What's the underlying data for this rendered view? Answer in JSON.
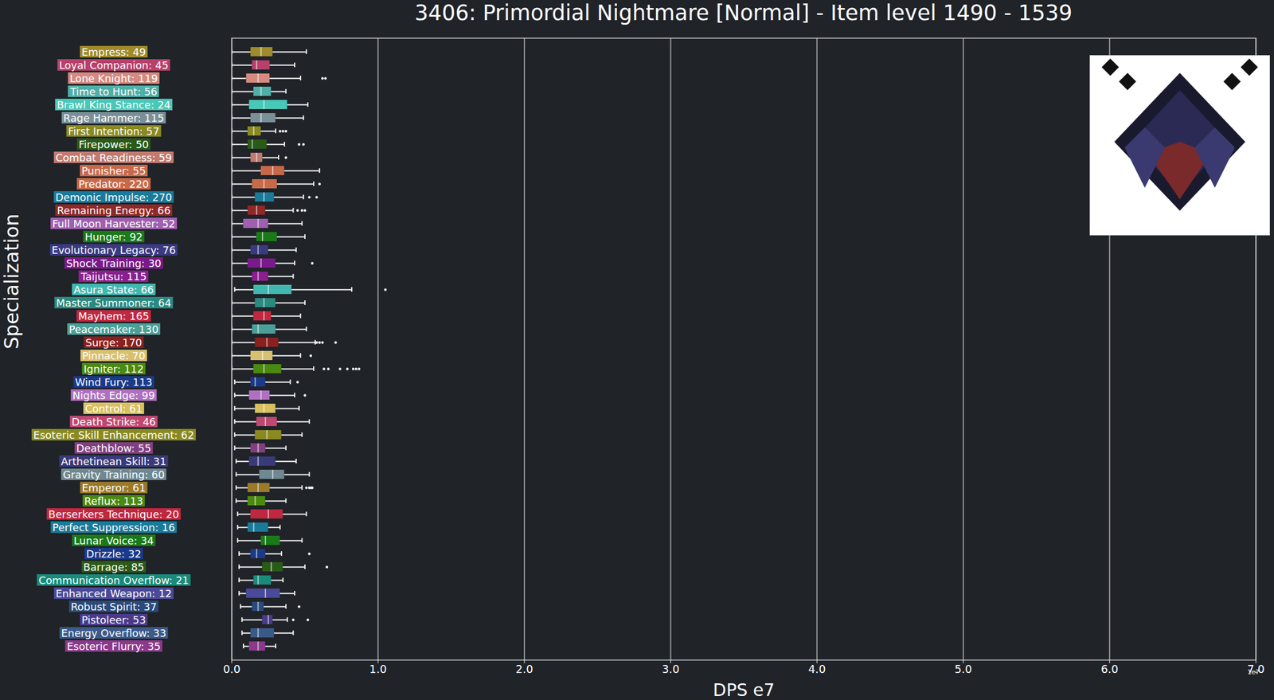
{
  "chart_data": {
    "type": "boxplot",
    "title": "3406: Primordial Nightmare [Normal] - Item level 1490 - 1539",
    "x_label": "DPS e7",
    "y_label": "Specialization",
    "orientation": "horizontal",
    "grid": true,
    "xlim": [
      0,
      7
    ],
    "xticks": [
      0,
      1,
      2,
      3,
      4,
      5,
      6,
      7
    ],
    "annotations": [
      {
        "text": "1e7"
      }
    ],
    "categories": [
      "Empress: 49",
      "Loyal Companion: 45",
      "Lone Knight: 119",
      "Time to Hunt: 56",
      "Brawl King Stance: 24",
      "Rage Hammer: 115",
      "First Intention: 57",
      "Firepower: 50",
      "Combat Readiness: 59",
      "Punisher: 55",
      "Predator: 220",
      "Demonic Impulse: 270",
      "Remaining Energy: 66",
      "Full Moon Harvester: 52",
      "Hunger: 92",
      "Evolutionary Legacy: 76",
      "Shock Training: 30",
      "Taijutsu: 115",
      "Asura State: 66",
      "Master Summoner: 64",
      "Mayhem: 165",
      "Peacemaker: 130",
      "Surge: 170",
      "Pinnacle: 70",
      "Igniter: 112",
      "Wind Fury: 113",
      "Nights Edge: 99",
      "Control: 61",
      "Death Strike: 46",
      "Esoteric Skill Enhancement: 62",
      "Deathblow: 55",
      "Arthetinean Skill: 31",
      "Gravity Training: 60",
      "Emperor: 61",
      "Reflux: 113",
      "Berserkers Technique: 20",
      "Perfect Suppression: 16",
      "Lunar Voice: 34",
      "Drizzle: 32",
      "Barrage: 85",
      "Communication Overflow: 21",
      "Enhanced Weapon: 12",
      "Robust Spirit: 37",
      "Pistoleer: 53",
      "Energy Overflow: 33",
      "Esoteric Flurry: 35"
    ],
    "colors": [
      "#a08a2a",
      "#b8406a",
      "#d48a80",
      "#4fb0a8",
      "#48c8b8",
      "#7a9098",
      "#8a8a20",
      "#2a5a18",
      "#c07a70",
      "#c8684a",
      "#c86a4a",
      "#1a7a9a",
      "#902828",
      "#a060b0",
      "#1a7a1a",
      "#3a3a80",
      "#7a1a8a",
      "#8a2090",
      "#40b8b0",
      "#2a8a80",
      "#c02840",
      "#4aa098",
      "#8a2020",
      "#d8c070",
      "#4a8a10",
      "#1a3a8a",
      "#b070c0",
      "#d8c060",
      "#c04870",
      "#8a8a20",
      "#804080",
      "#3a3a7a",
      "#708890",
      "#9a7a2a",
      "#4a8a10",
      "#c02840",
      "#1a7a9a",
      "#1a7a1a",
      "#1a3a8a",
      "#2a5a18",
      "#1a8a7a",
      "#4a4a9a",
      "#2a4a7a",
      "#4a3a8a",
      "#3a5a8a",
      "#8a3a8a"
    ],
    "whisker_low": [
      0,
      0,
      0,
      0,
      0,
      0,
      0,
      0,
      0,
      0,
      0,
      0,
      0,
      0,
      0,
      0,
      0,
      0,
      0.02,
      0,
      0,
      0,
      0,
      0,
      0,
      0.02,
      0.02,
      0.02,
      0.02,
      0.02,
      0.02,
      0.03,
      0.03,
      0.03,
      0.03,
      0.04,
      0.04,
      0.04,
      0.05,
      0.05,
      0.05,
      0.05,
      0.06,
      0.07,
      0.07,
      0.08
    ],
    "q1": [
      0.13,
      0.14,
      0.1,
      0.15,
      0.12,
      0.13,
      0.11,
      0.11,
      0.13,
      0.2,
      0.14,
      0.16,
      0.11,
      0.08,
      0.17,
      0.13,
      0.11,
      0.14,
      0.15,
      0.16,
      0.15,
      0.14,
      0.16,
      0.13,
      0.15,
      0.13,
      0.12,
      0.16,
      0.17,
      0.16,
      0.13,
      0.12,
      0.19,
      0.11,
      0.11,
      0.13,
      0.11,
      0.2,
      0.13,
      0.21,
      0.15,
      0.1,
      0.14,
      0.21,
      0.13,
      0.12
    ],
    "median": [
      0.2,
      0.17,
      0.18,
      0.2,
      0.22,
      0.2,
      0.15,
      0.14,
      0.17,
      0.28,
      0.22,
      0.22,
      0.17,
      0.18,
      0.21,
      0.18,
      0.2,
      0.18,
      0.25,
      0.22,
      0.22,
      0.18,
      0.24,
      0.21,
      0.22,
      0.16,
      0.2,
      0.22,
      0.23,
      0.24,
      0.18,
      0.18,
      0.28,
      0.18,
      0.16,
      0.25,
      0.15,
      0.23,
      0.17,
      0.27,
      0.18,
      0.23,
      0.18,
      0.25,
      0.18,
      0.18
    ],
    "q3": [
      0.28,
      0.26,
      0.26,
      0.27,
      0.38,
      0.3,
      0.2,
      0.24,
      0.21,
      0.36,
      0.31,
      0.29,
      0.23,
      0.25,
      0.31,
      0.25,
      0.3,
      0.25,
      0.41,
      0.3,
      0.27,
      0.3,
      0.32,
      0.28,
      0.34,
      0.23,
      0.26,
      0.3,
      0.31,
      0.34,
      0.23,
      0.3,
      0.36,
      0.26,
      0.23,
      0.35,
      0.25,
      0.33,
      0.23,
      0.35,
      0.27,
      0.33,
      0.22,
      0.28,
      0.29,
      0.23
    ],
    "whisker_high": [
      0.51,
      0.43,
      0.47,
      0.37,
      0.52,
      0.49,
      0.3,
      0.36,
      0.32,
      0.6,
      0.56,
      0.49,
      0.42,
      0.48,
      0.5,
      0.44,
      0.43,
      0.42,
      0.82,
      0.5,
      0.47,
      0.51,
      0.57,
      0.47,
      0.56,
      0.4,
      0.43,
      0.46,
      0.53,
      0.48,
      0.37,
      0.44,
      0.53,
      0.48,
      0.37,
      0.51,
      0.33,
      0.48,
      0.34,
      0.5,
      0.35,
      0.43,
      0.37,
      0.38,
      0.42,
      0.3
    ],
    "outliers": [
      [],
      [],
      [
        0.62,
        0.64
      ],
      [],
      [],
      [],
      [
        0.33,
        0.35,
        0.37
      ],
      [
        0.46,
        0.49
      ],
      [
        0.37
      ],
      [],
      [
        0.6
      ],
      [
        0.53,
        0.58
      ],
      [
        0.45,
        0.48,
        0.5
      ],
      [],
      [],
      [],
      [
        0.55
      ],
      [],
      [
        1.05
      ],
      [],
      [],
      [],
      [
        0.58,
        0.6,
        0.62,
        0.71
      ],
      [
        0.54
      ],
      [
        0.63,
        0.66,
        0.74,
        0.79,
        0.83,
        0.85,
        0.87
      ],
      [
        0.45
      ],
      [
        0.5
      ],
      [],
      [],
      [],
      [],
      [],
      [],
      [
        0.51,
        0.53,
        0.54,
        0.55
      ],
      [],
      [],
      [],
      [],
      [
        0.53
      ],
      [
        0.65
      ],
      [],
      [],
      [
        0.46
      ],
      [
        0.42,
        0.52
      ],
      [],
      []
    ]
  }
}
